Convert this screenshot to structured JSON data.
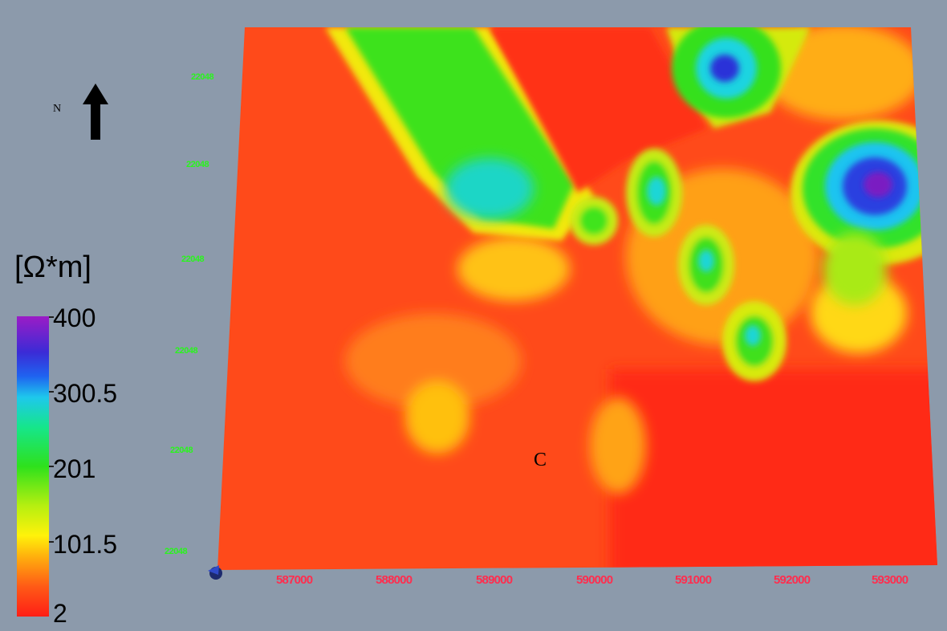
{
  "north": {
    "letter": "N",
    "icon": "north-arrow-icon"
  },
  "legend": {
    "unit": "[Ω*m]",
    "min": 2,
    "max": 400,
    "ticks": [
      "400",
      "300.5",
      "201",
      "101.5",
      "2"
    ],
    "tick_values": [
      400,
      300.5,
      201,
      101.5,
      2
    ],
    "colors": [
      "#9b1cc6",
      "#3b2bd6",
      "#1f63f0",
      "#1ec8ec",
      "#16e68a",
      "#2ee11c",
      "#b5ef10",
      "#fff20a",
      "#ffb00d",
      "#ff5a16",
      "#ff1e16"
    ]
  },
  "axes": {
    "x_ticks": [
      "587000",
      "588000",
      "589000",
      "590000",
      "591000",
      "592000",
      "593000"
    ],
    "y_ticks": [
      "22048",
      "22048",
      "22048",
      "22048",
      "22048",
      "22048"
    ]
  },
  "annotations": {
    "point_label": "C"
  },
  "colors": {
    "background": "#8c9aab",
    "x_tick_color": "#ff2d4e",
    "y_tick_color": "#29f51c"
  }
}
